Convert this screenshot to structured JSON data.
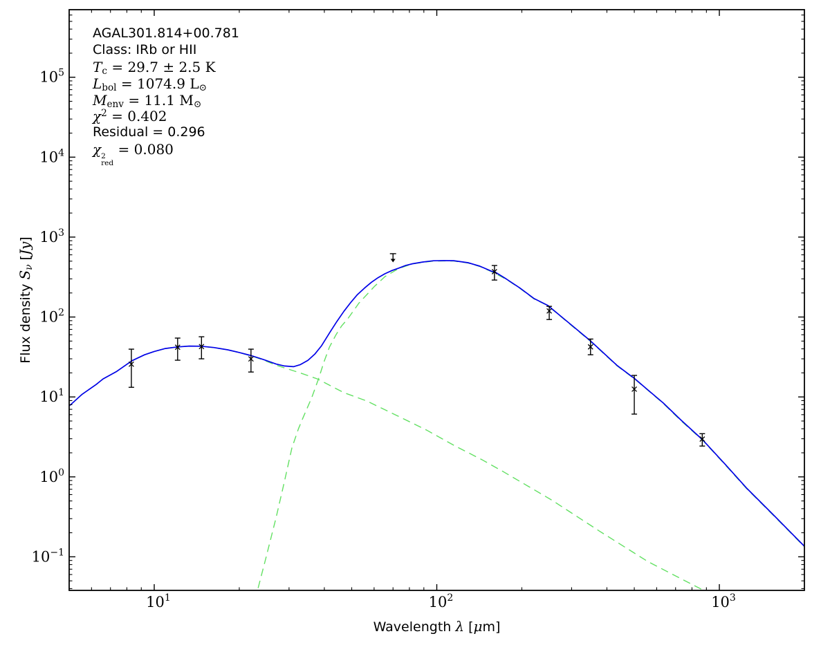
{
  "chart_data": {
    "type": "line",
    "title": "AGAL301.814+00.781",
    "xlabel_segments": [
      {
        "t": "Wavelength ",
        "f": "sans"
      },
      {
        "t": "λ",
        "f": "mathit"
      },
      {
        "t": " [",
        "f": "sans"
      },
      {
        "t": "μ",
        "f": "mathit"
      },
      {
        "t": "m]",
        "f": "sans"
      }
    ],
    "ylabel_segments": [
      {
        "t": "Flux density ",
        "f": "sans"
      },
      {
        "t": "S",
        "f": "mathit"
      },
      {
        "t": "ν",
        "v": "sub",
        "f": "mathit"
      },
      {
        "t": " [",
        "f": "sans"
      },
      {
        "t": "Jy",
        "f": "mathit"
      },
      {
        "t": "]",
        "f": "sans"
      }
    ],
    "annotation_lines": [
      {
        "segments": [
          {
            "t": "AGAL301.814+00.781",
            "f": "sans"
          }
        ]
      },
      {
        "segments": [
          {
            "t": "Class: IRb or HII",
            "f": "sans"
          }
        ]
      },
      {
        "segments": [
          {
            "t": "T",
            "f": "mathit"
          },
          {
            "t": "c",
            "v": "sub",
            "f": "math"
          },
          {
            "t": " = 29.7 ± 2.5 K",
            "f": "math"
          }
        ]
      },
      {
        "segments": [
          {
            "t": "L",
            "f": "mathit"
          },
          {
            "t": "bol",
            "v": "sub",
            "f": "math"
          },
          {
            "t": " = 1074.9 L",
            "f": "math"
          },
          {
            "t": "⊙",
            "v": "sub",
            "f": "math"
          }
        ]
      },
      {
        "segments": [
          {
            "t": "M",
            "f": "mathit"
          },
          {
            "t": "env",
            "v": "sub",
            "f": "math"
          },
          {
            "t": " = 11.1 M",
            "f": "math"
          },
          {
            "t": "⊙",
            "v": "sub",
            "f": "math"
          }
        ]
      },
      {
        "segments": [
          {
            "t": "χ",
            "f": "mathit"
          },
          {
            "t": "2",
            "v": "sup",
            "f": "math"
          },
          {
            "t": " = 0.402",
            "f": "math"
          }
        ]
      },
      {
        "segments": [
          {
            "t": "Residual = 0.296",
            "f": "sans"
          }
        ]
      },
      {
        "segments": [
          {
            "t": "χ",
            "f": "mathit"
          },
          {
            "v": "stack",
            "sup": "2",
            "sub": "red"
          },
          {
            "t": " = 0.080",
            "f": "math"
          }
        ]
      }
    ],
    "xlim": [
      5,
      2000
    ],
    "ylim": [
      0.038,
      700000
    ],
    "x_major_ticks": [
      10,
      100,
      1000
    ],
    "y_major_ticks": [
      0.1,
      1,
      10,
      100,
      1000,
      10000,
      100000
    ],
    "grid": false,
    "legend": "none",
    "colors": {
      "model_total": "#0000e8",
      "components": "#62e062",
      "data": "#000000",
      "frame": "#000000"
    },
    "data_points": [
      {
        "lam": 8.3,
        "flux": 25.7,
        "lo": 13.2,
        "hi": 39.6
      },
      {
        "lam": 12.1,
        "flux": 41.9,
        "lo": 28.8,
        "hi": 54.5
      },
      {
        "lam": 14.7,
        "flux": 42.7,
        "lo": 30.0,
        "hi": 56.6
      },
      {
        "lam": 22.0,
        "flux": 29.9,
        "lo": 20.5,
        "hi": 39.6
      },
      {
        "lam": 160,
        "flux": 369,
        "lo": 290,
        "hi": 441
      },
      {
        "lam": 250,
        "flux": 119,
        "lo": 93,
        "hi": 136
      },
      {
        "lam": 350,
        "flux": 42.3,
        "lo": 33.7,
        "hi": 53
      },
      {
        "lam": 500,
        "flux": 12.5,
        "lo": 6.1,
        "hi": 18.6
      },
      {
        "lam": 870,
        "flux": 2.97,
        "lo": 2.43,
        "hi": 3.47
      }
    ],
    "upper_limit": {
      "lam": 70,
      "flux": 620
    },
    "model_total": [
      [
        5.0,
        7.7
      ],
      [
        5.56,
        10.8
      ],
      [
        6.23,
        14.3
      ],
      [
        6.59,
        16.8
      ],
      [
        7.37,
        20.9
      ],
      [
        8.34,
        28.4
      ],
      [
        9.24,
        33.7
      ],
      [
        10.0,
        37.1
      ],
      [
        10.95,
        40.4
      ],
      [
        12.13,
        42.3
      ],
      [
        13.3,
        43.3
      ],
      [
        14.65,
        43.1
      ],
      [
        16.25,
        41.5
      ],
      [
        18.2,
        38.9
      ],
      [
        20.0,
        36.0
      ],
      [
        22.1,
        32.8
      ],
      [
        24.4,
        29.3
      ],
      [
        27.0,
        25.8
      ],
      [
        28.9,
        24.4
      ],
      [
        31.1,
        23.9
      ],
      [
        32.9,
        25.4
      ],
      [
        35.0,
        28.7
      ],
      [
        37.0,
        34.3
      ],
      [
        39.1,
        43.7
      ],
      [
        41.9,
        64.8
      ],
      [
        44.3,
        87.8
      ],
      [
        46.9,
        118
      ],
      [
        49.6,
        152
      ],
      [
        52.4,
        191
      ],
      [
        55.5,
        230
      ],
      [
        58.7,
        272
      ],
      [
        62.0,
        311
      ],
      [
        65.6,
        348
      ],
      [
        69.4,
        382
      ],
      [
        73.4,
        409
      ],
      [
        77.7,
        442
      ],
      [
        82.1,
        464
      ],
      [
        89.3,
        488
      ],
      [
        97.2,
        505
      ],
      [
        105.9,
        508
      ],
      [
        114.9,
        506
      ],
      [
        129,
        478
      ],
      [
        142,
        433
      ],
      [
        157,
        371
      ],
      [
        160,
        369
      ],
      [
        176,
        300
      ],
      [
        197,
        230
      ],
      [
        221,
        170
      ],
      [
        247,
        140
      ],
      [
        277,
        100
      ],
      [
        310,
        72
      ],
      [
        347,
        51.6
      ],
      [
        388,
        35.8
      ],
      [
        434,
        24.9
      ],
      [
        486,
        18.4
      ],
      [
        500,
        17.1
      ],
      [
        556,
        12.4
      ],
      [
        633,
        8.4
      ],
      [
        729,
        5.2
      ],
      [
        873,
        2.9
      ],
      [
        1052,
        1.42
      ],
      [
        1246,
        0.73
      ],
      [
        1560,
        0.33
      ],
      [
        1985,
        0.139
      ],
      [
        2150,
        0.1
      ]
    ],
    "component_warm": [
      [
        4.7,
        6.9
      ],
      [
        5.0,
        7.7
      ],
      [
        5.56,
        10.8
      ],
      [
        6.23,
        14.3
      ],
      [
        6.59,
        16.8
      ],
      [
        7.37,
        20.9
      ],
      [
        8.34,
        28.4
      ],
      [
        9.24,
        33.7
      ],
      [
        10.0,
        37.1
      ],
      [
        10.95,
        40.4
      ],
      [
        12.13,
        42.3
      ],
      [
        13.3,
        43.3
      ],
      [
        14.65,
        43.0
      ],
      [
        16.25,
        41.4
      ],
      [
        18.2,
        38.8
      ],
      [
        20.0,
        35.8
      ],
      [
        22.1,
        32.5
      ],
      [
        24.4,
        28.9
      ],
      [
        27.0,
        25.0
      ],
      [
        33.2,
        19.7
      ],
      [
        37.8,
        16.8
      ],
      [
        46.9,
        11.3
      ],
      [
        56.5,
        8.9
      ],
      [
        71.5,
        5.95
      ],
      [
        92.1,
        3.84
      ],
      [
        115,
        2.48
      ],
      [
        145,
        1.63
      ],
      [
        172,
        1.16
      ],
      [
        255,
        0.513
      ],
      [
        377,
        0.209
      ],
      [
        559,
        0.087
      ],
      [
        884,
        0.0377
      ],
      [
        950,
        0.03
      ]
    ],
    "component_cold": [
      [
        22.6,
        0.02
      ],
      [
        23.2,
        0.038
      ],
      [
        24.8,
        0.094
      ],
      [
        27.0,
        0.31
      ],
      [
        28.9,
        0.88
      ],
      [
        30.7,
        2.3
      ],
      [
        32.4,
        4.0
      ],
      [
        33.7,
        5.6
      ],
      [
        36.1,
        9.8
      ],
      [
        38.2,
        17.1
      ],
      [
        39.9,
        27.6
      ],
      [
        41.7,
        42.0
      ],
      [
        44.0,
        60.0
      ],
      [
        46.0,
        77.0
      ],
      [
        48.3,
        94.0
      ],
      [
        53.0,
        149
      ],
      [
        60.0,
        239
      ],
      [
        65.6,
        321
      ],
      [
        73.4,
        405
      ],
      [
        82.0,
        462
      ],
      [
        89.3,
        483
      ],
      [
        97.2,
        500
      ],
      [
        105.9,
        503
      ],
      [
        114.9,
        501
      ],
      [
        129,
        474
      ],
      [
        142,
        429
      ],
      [
        157,
        367
      ],
      [
        176,
        297
      ],
      [
        197,
        228
      ],
      [
        221,
        168
      ],
      [
        247,
        139
      ],
      [
        277,
        99
      ],
      [
        310,
        71
      ],
      [
        347,
        51
      ],
      [
        388,
        35.4
      ],
      [
        434,
        24.6
      ],
      [
        486,
        18.2
      ],
      [
        500,
        16.9
      ],
      [
        556,
        12.3
      ],
      [
        633,
        8.3
      ],
      [
        729,
        5.1
      ],
      [
        873,
        2.87
      ],
      [
        1052,
        1.4
      ],
      [
        1246,
        0.72
      ],
      [
        1560,
        0.325
      ],
      [
        1985,
        0.137
      ],
      [
        2150,
        0.1
      ]
    ]
  }
}
